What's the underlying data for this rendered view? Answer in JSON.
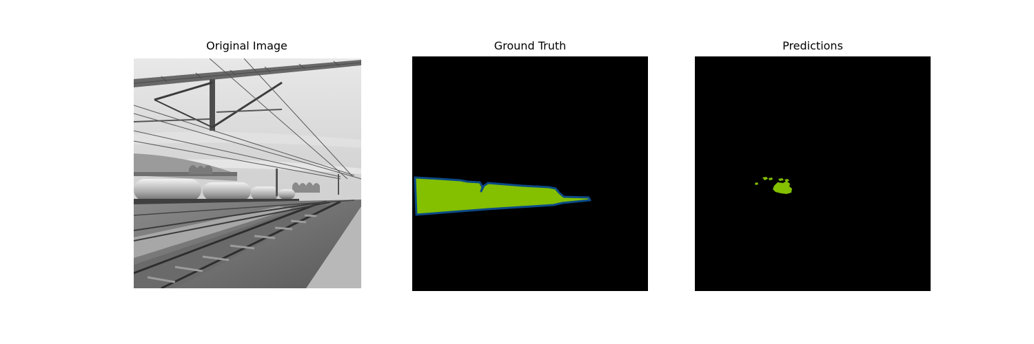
{
  "panels": [
    {
      "title": "Original Image"
    },
    {
      "title": "Ground Truth"
    },
    {
      "title": "Predictions"
    }
  ],
  "colors": {
    "background_mask": "#000000",
    "class_fill": "#84bf00",
    "class_outline": "#0b4a87"
  }
}
